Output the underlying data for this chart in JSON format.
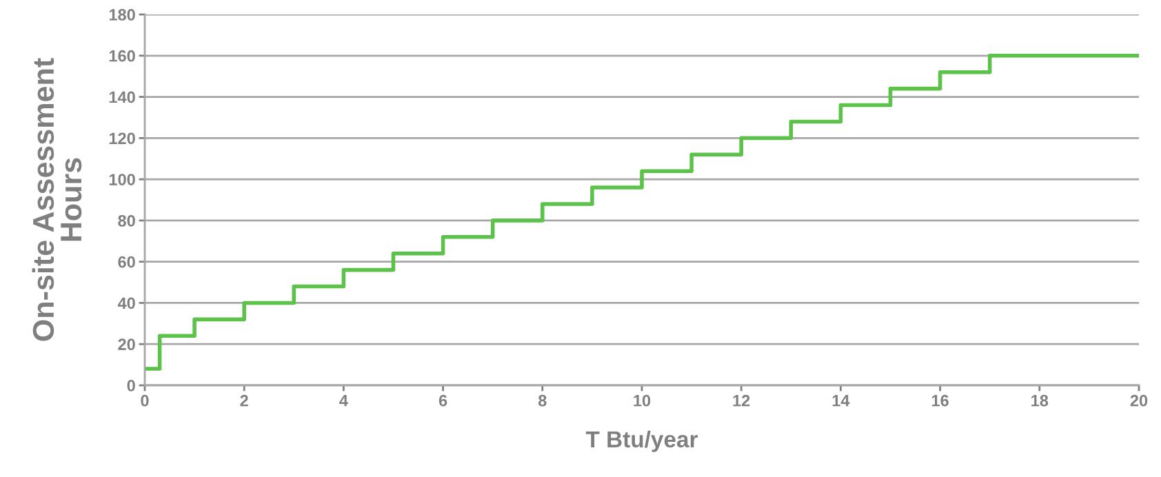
{
  "chart_data": {
    "type": "step",
    "xlabel": "T Btu/year",
    "ylabel": "On-site Assessment\nHours",
    "x": [
      0,
      0.3,
      1,
      2,
      3,
      4,
      5,
      6,
      7,
      8,
      9,
      10,
      11,
      12,
      13,
      14,
      15,
      16,
      17,
      20
    ],
    "series": [
      {
        "color": "#5cc24a",
        "values": [
          8,
          24,
          32,
          40,
          48,
          56,
          64,
          72,
          80,
          88,
          96,
          104,
          112,
          120,
          128,
          136,
          144,
          152,
          160,
          160
        ]
      }
    ],
    "xlim": [
      0,
      20
    ],
    "xticks": [
      0,
      2,
      4,
      6,
      8,
      10,
      12,
      14,
      16,
      18,
      20
    ],
    "ylim": [
      0,
      180
    ],
    "yticks": [
      0,
      20,
      40,
      60,
      80,
      100,
      120,
      140,
      160,
      180
    ],
    "grid": "y",
    "marker": "none",
    "line_style": "solid"
  }
}
